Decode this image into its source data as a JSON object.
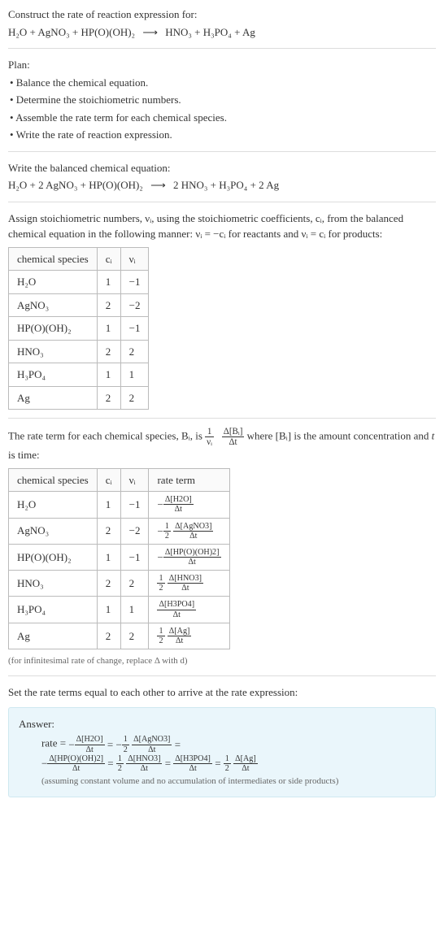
{
  "intro": {
    "prompt": "Construct the rate of reaction expression for:",
    "unbalanced_left": "H₂O + AgNO₃ + HP(O)(OH)₂",
    "arrow": "⟶",
    "unbalanced_right": "HNO₃ + H₃PO₄ + Ag"
  },
  "plan": {
    "heading": "Plan:",
    "items": [
      "• Balance the chemical equation.",
      "• Determine the stoichiometric numbers.",
      "• Assemble the rate term for each chemical species.",
      "• Write the rate of reaction expression."
    ]
  },
  "balanced": {
    "heading": "Write the balanced chemical equation:",
    "left": "H₂O + 2 AgNO₃ + HP(O)(OH)₂",
    "arrow": "⟶",
    "right": "2 HNO₃ + H₃PO₄ + 2 Ag"
  },
  "stoich_text": "Assign stoichiometric numbers, νᵢ, using the stoichiometric coefficients, cᵢ, from the balanced chemical equation in the following manner: νᵢ = −cᵢ for reactants and νᵢ = cᵢ for products:",
  "table1": {
    "headers": [
      "chemical species",
      "cᵢ",
      "νᵢ"
    ],
    "rows": [
      [
        "H₂O",
        "1",
        "−1"
      ],
      [
        "AgNO₃",
        "2",
        "−2"
      ],
      [
        "HP(O)(OH)₂",
        "1",
        "−1"
      ],
      [
        "HNO₃",
        "2",
        "2"
      ],
      [
        "H₃PO₄",
        "1",
        "1"
      ],
      [
        "Ag",
        "2",
        "2"
      ]
    ]
  },
  "rate_intro": {
    "pre": "The rate term for each chemical species, Bᵢ, is ",
    "frac1_num": "1",
    "frac1_den": "νᵢ",
    "frac2_num": "Δ[Bᵢ]",
    "frac2_den": "Δt",
    "mid": " where [Bᵢ] is the amount concentration and ",
    "tvar": "t",
    "post": " is time:"
  },
  "table2": {
    "headers": [
      "chemical species",
      "cᵢ",
      "νᵢ",
      "rate term"
    ],
    "rows": [
      {
        "sp": "H₂O",
        "c": "1",
        "v": "−1",
        "pre": "−",
        "half": false,
        "num": "Δ[H2O]",
        "den": "Δt"
      },
      {
        "sp": "AgNO₃",
        "c": "2",
        "v": "−2",
        "pre": "−",
        "half": true,
        "num": "Δ[AgNO3]",
        "den": "Δt"
      },
      {
        "sp": "HP(O)(OH)₂",
        "c": "1",
        "v": "−1",
        "pre": "−",
        "half": false,
        "num": "Δ[HP(O)(OH)2]",
        "den": "Δt"
      },
      {
        "sp": "HNO₃",
        "c": "2",
        "v": "2",
        "pre": "",
        "half": true,
        "num": "Δ[HNO3]",
        "den": "Δt"
      },
      {
        "sp": "H₃PO₄",
        "c": "1",
        "v": "1",
        "pre": "",
        "half": false,
        "num": "Δ[H3PO4]",
        "den": "Δt"
      },
      {
        "sp": "Ag",
        "c": "2",
        "v": "2",
        "pre": "",
        "half": true,
        "num": "Δ[Ag]",
        "den": "Δt"
      }
    ],
    "note": "(for infinitesimal rate of change, replace Δ with d)"
  },
  "final_text": "Set the rate terms equal to each other to arrive at the rate expression:",
  "answer": {
    "label": "Answer:",
    "rate_eq": "rate = ",
    "terms": [
      {
        "pre": "−",
        "half": false,
        "num": "Δ[H2O]",
        "den": "Δt",
        "eq": " = "
      },
      {
        "pre": "−",
        "half": true,
        "num": "Δ[AgNO3]",
        "den": "Δt",
        "eq": " ="
      },
      {
        "pre": "−",
        "half": false,
        "num": "Δ[HP(O)(OH)2]",
        "den": "Δt",
        "eq": " = "
      },
      {
        "pre": "",
        "half": true,
        "num": "Δ[HNO3]",
        "den": "Δt",
        "eq": " = "
      },
      {
        "pre": "",
        "half": false,
        "num": "Δ[H3PO4]",
        "den": "Δt",
        "eq": " = "
      },
      {
        "pre": "",
        "half": true,
        "num": "Δ[Ag]",
        "den": "Δt",
        "eq": ""
      }
    ],
    "note": "(assuming constant volume and no accumulation of intermediates or side products)"
  },
  "half": {
    "num": "1",
    "den": "2"
  }
}
